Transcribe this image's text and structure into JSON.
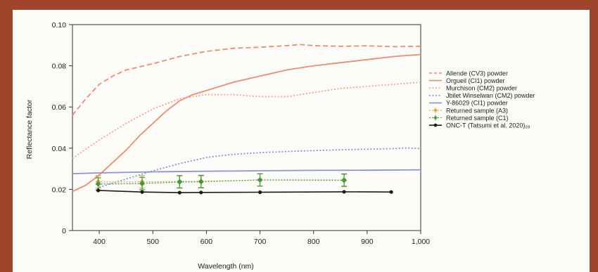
{
  "chart_data": {
    "type": "line",
    "title": "",
    "xlabel": "Wavelength (nm)",
    "ylabel": "Reflectance factor",
    "xlim": [
      350,
      1000
    ],
    "ylim": [
      0,
      0.1
    ],
    "x_ticks": [
      "400",
      "500",
      "600",
      "700",
      "800",
      "900",
      "1,000"
    ],
    "x_tick_values": [
      400,
      500,
      600,
      700,
      800,
      900,
      1000
    ],
    "y_ticks": [
      "0",
      "0.02",
      "0.04",
      "0.06",
      "0.08",
      "0.10"
    ],
    "y_tick_values": [
      0,
      0.02,
      0.04,
      0.06,
      0.08,
      0.1
    ],
    "grid": false,
    "legend_position": "right",
    "series": [
      {
        "name": "Allende (CV3) powder",
        "color": "#f08a70",
        "style": "dashed",
        "x": [
          350,
          375,
          400,
          425,
          450,
          475,
          500,
          550,
          600,
          650,
          700,
          750,
          775,
          800,
          850,
          900,
          950,
          1000
        ],
        "y": [
          0.056,
          0.064,
          0.071,
          0.075,
          0.078,
          0.0795,
          0.081,
          0.0845,
          0.087,
          0.0885,
          0.089,
          0.0898,
          0.0903,
          0.0898,
          0.0895,
          0.0897,
          0.0893,
          0.0895
        ]
      },
      {
        "name": "Orgueil (CI1) powder",
        "color": "#f08a70",
        "style": "solid",
        "x": [
          350,
          375,
          400,
          425,
          450,
          475,
          500,
          525,
          550,
          575,
          600,
          650,
          700,
          750,
          800,
          850,
          900,
          950,
          1000
        ],
        "y": [
          0.019,
          0.022,
          0.027,
          0.033,
          0.039,
          0.046,
          0.052,
          0.058,
          0.063,
          0.066,
          0.068,
          0.072,
          0.075,
          0.078,
          0.08,
          0.0815,
          0.083,
          0.0845,
          0.0855
        ]
      },
      {
        "name": "Murchison (CM2) powder",
        "color": "#f5a38c",
        "style": "dotted",
        "x": [
          350,
          400,
          450,
          500,
          550,
          600,
          650,
          700,
          750,
          800,
          850,
          900,
          950,
          1000
        ],
        "y": [
          0.035,
          0.044,
          0.052,
          0.059,
          0.064,
          0.066,
          0.066,
          0.065,
          0.065,
          0.067,
          0.069,
          0.07,
          0.071,
          0.072
        ]
      },
      {
        "name": "Jbilet Winselwan (CM2) powder",
        "color": "#8b93d8",
        "style": "dotted",
        "x": [
          400,
          450,
          500,
          550,
          600,
          650,
          700,
          750,
          800,
          850,
          900,
          950,
          975,
          1000
        ],
        "y": [
          0.021,
          0.025,
          0.029,
          0.0325,
          0.0355,
          0.037,
          0.0378,
          0.0384,
          0.0388,
          0.0392,
          0.0395,
          0.0398,
          0.0401,
          0.0398
        ]
      },
      {
        "name": "Y-86029 (CI1) powder",
        "color": "#8b93d8",
        "style": "solid",
        "x": [
          350,
          400,
          500,
          600,
          700,
          800,
          900,
          1000
        ],
        "y": [
          0.0276,
          0.028,
          0.0285,
          0.0288,
          0.029,
          0.0292,
          0.0293,
          0.0295
        ]
      },
      {
        "name": "Returned sample (A3)",
        "color": "#e8a33a",
        "style": "marker-errorbar",
        "x": [
          398,
          480,
          550,
          590,
          700,
          857
        ],
        "y": [
          0.0236,
          0.0236,
          0.0238,
          0.0239,
          0.0245,
          0.0243
        ],
        "error": 0.003
      },
      {
        "name": "Returned sample (C1)",
        "color": "#3d9a3d",
        "style": "marker-errorbar",
        "x": [
          398,
          480,
          550,
          590,
          700,
          857
        ],
        "y": [
          0.0226,
          0.0228,
          0.0236,
          0.0237,
          0.0246,
          0.0245
        ],
        "error": 0.003
      },
      {
        "name": "ONC-T (Tatsumi et al. 2020)₂₈",
        "color": "#1a1a1a",
        "style": "line-marker",
        "x": [
          398,
          480,
          550,
          590,
          700,
          857,
          945
        ],
        "y": [
          0.0195,
          0.0187,
          0.0184,
          0.0185,
          0.0186,
          0.0188,
          0.0187
        ]
      }
    ]
  }
}
